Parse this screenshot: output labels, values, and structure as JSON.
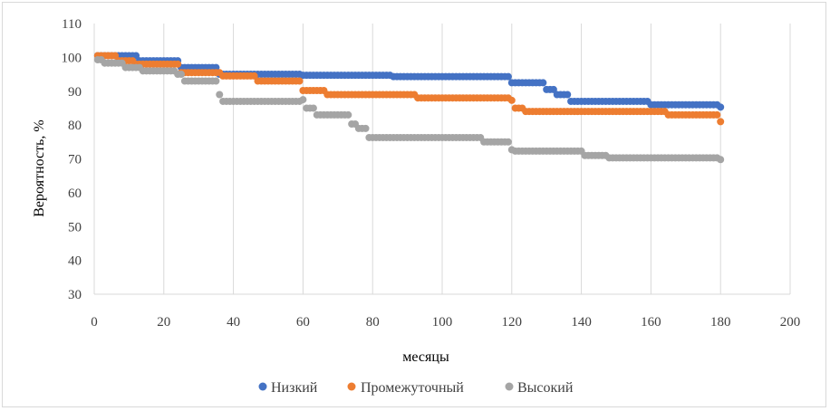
{
  "chart_data": {
    "type": "scatter",
    "xlabel": "месяцы",
    "ylabel": "Вероятность,  %",
    "xlim": [
      0,
      200
    ],
    "ylim": [
      30,
      110
    ],
    "x_ticks": [
      0,
      20,
      40,
      60,
      80,
      100,
      120,
      140,
      160,
      180,
      200
    ],
    "y_ticks": [
      30,
      40,
      50,
      60,
      70,
      80,
      90,
      100,
      110
    ],
    "grid": "vertical",
    "legend_position": "bottom",
    "series": [
      {
        "name": "Низкий",
        "color": "#4472c4",
        "steps": [
          [
            1,
            100.5
          ],
          [
            13,
            99
          ],
          [
            25,
            97
          ],
          [
            36,
            95
          ],
          [
            60,
            94.7
          ],
          [
            86,
            94.3
          ],
          [
            120,
            92.5
          ],
          [
            130,
            90.5
          ],
          [
            133,
            89
          ],
          [
            137,
            87
          ],
          [
            160,
            86
          ],
          [
            180,
            85.3
          ]
        ],
        "x_end": 180
      },
      {
        "name": "Промежуточный",
        "color": "#ed7d31",
        "steps": [
          [
            1,
            100.5
          ],
          [
            7,
            99
          ],
          [
            12,
            98
          ],
          [
            25,
            95.5
          ],
          [
            37,
            94.5
          ],
          [
            47,
            93
          ],
          [
            60,
            90.2
          ],
          [
            67,
            89
          ],
          [
            93,
            88
          ],
          [
            120,
            87.3
          ],
          [
            121,
            85
          ],
          [
            124,
            84
          ],
          [
            165,
            83
          ],
          [
            180,
            81
          ]
        ],
        "x_end": 180
      },
      {
        "name": "Высокий",
        "color": "#a5a5a5",
        "steps": [
          [
            1,
            99.3
          ],
          [
            3,
            98.3
          ],
          [
            9,
            97
          ],
          [
            14,
            96
          ],
          [
            24,
            95
          ],
          [
            26,
            93
          ],
          [
            36,
            89
          ],
          [
            37,
            87
          ],
          [
            60,
            87.5
          ],
          [
            61,
            85
          ],
          [
            64,
            83
          ],
          [
            74,
            80.3
          ],
          [
            76,
            79
          ],
          [
            79,
            76.3
          ],
          [
            112,
            75
          ],
          [
            120,
            72.7
          ],
          [
            121,
            72.3
          ],
          [
            141,
            71
          ],
          [
            148,
            70.3
          ],
          [
            180,
            69.8
          ]
        ],
        "x_end": 180
      }
    ]
  }
}
